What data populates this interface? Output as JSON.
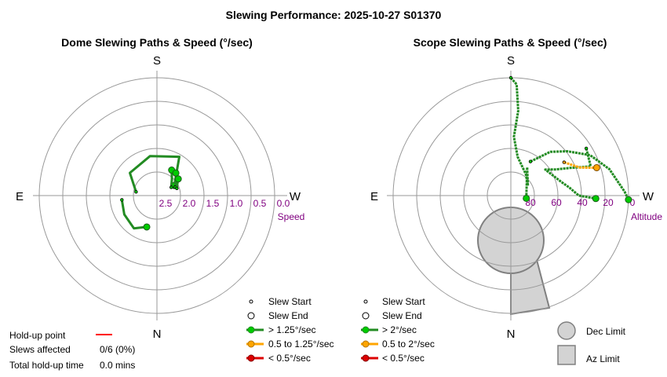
{
  "title": "Slewing Performance: 2025-10-27 S01370",
  "colors": {
    "fast": "#00cc00",
    "fast_line": "#228b22",
    "medium": "#ffa500",
    "slow": "#dd0000",
    "axis_label": "#800080",
    "ring": "#999999",
    "limit_fill": "#d3d3d3",
    "limit_stroke": "#808080",
    "holdup": "#ff0000"
  },
  "chart_data": [
    {
      "type": "polar",
      "id": "dome",
      "title": "Dome Slewing Paths & Speed (°/sec)",
      "directions": {
        "top": "S",
        "bottom": "N",
        "left": "E",
        "right": "W"
      },
      "radial_axis": {
        "label": "Speed",
        "ticks": [
          "2.5",
          "2.0",
          "1.5",
          "1.0",
          "0.5",
          "0.0"
        ]
      },
      "legend": [
        {
          "label": "Slew Start",
          "kind": "start"
        },
        {
          "label": "Slew End",
          "kind": "end"
        },
        {
          "label": "> 1.25°/sec",
          "kind": "fast"
        },
        {
          "label": "0.5 to 1.25°/sec",
          "kind": "medium"
        },
        {
          "label": "< 0.5°/sec",
          "kind": "slow"
        }
      ],
      "paths": [
        {
          "speed_class": "fast",
          "az": [
            83,
            60,
            35,
            18
          ],
          "r": [
            1.5,
            1.4,
            1.3,
            1.6
          ]
        },
        {
          "speed_class": "fast",
          "az": [
            100,
            130,
            170,
            210,
            240
          ],
          "r": [
            2.1,
            1.5,
            1.3,
            1.1,
            2.15
          ]
        },
        {
          "speed_class": "fast",
          "az": [
            240,
            222,
            215,
            210
          ],
          "r": [
            2.3,
            2.05,
            1.9,
            1.75
          ]
        },
        {
          "speed_class": "fast",
          "az": [
            245,
            232,
            225,
            220
          ],
          "r": [
            2.15,
            2.0,
            1.85,
            1.75
          ]
        },
        {
          "speed_class": "fast",
          "az": [
            250,
            240,
            232
          ],
          "r": [
            2.1,
            2.0,
            1.85
          ]
        }
      ]
    },
    {
      "type": "polar",
      "id": "scope",
      "title": "Scope Slewing Paths & Speed (°/sec)",
      "directions": {
        "top": "S",
        "bottom": "N",
        "left": "E",
        "right": "W"
      },
      "radial_axis": {
        "label": "Altitude",
        "ticks": [
          "80",
          "60",
          "40",
          "20",
          "0"
        ]
      },
      "legend": [
        {
          "label": "Slew Start",
          "kind": "start"
        },
        {
          "label": "Slew End",
          "kind": "end"
        },
        {
          "label": "> 2°/sec",
          "kind": "fast"
        },
        {
          "label": "0.5 to 2°/sec",
          "kind": "medium"
        },
        {
          "label": "< 0.5°/sec",
          "kind": "slow"
        }
      ],
      "limit_legend": [
        {
          "label": "Dec Limit",
          "kind": "dec"
        },
        {
          "label": "Az Limit",
          "kind": "az"
        }
      ],
      "paths": [
        {
          "speed_class": "fast",
          "az": [
            180,
            183,
            185,
            183,
            190,
            215,
            240,
            210,
            280
          ],
          "alt": [
            0,
            5,
            25,
            45,
            60,
            70,
            75,
            65,
            78
          ]
        },
        {
          "speed_class": "fast",
          "az": [
            238,
            250,
            245,
            240,
            233,
            255,
            262,
            270,
            272
          ],
          "alt": [
            22,
            25,
            40,
            50,
            57,
            50,
            45,
            38,
            25
          ]
        },
        {
          "speed_class": "fast",
          "az": [
            210,
            222,
            232,
            243,
            255,
            268,
            272
          ],
          "alt": [
            60,
            45,
            35,
            22,
            12,
            3,
            0
          ]
        },
        {
          "speed_class": "medium",
          "az": [
            238,
            248,
            252
          ],
          "alt": [
            42,
            33,
            21
          ]
        }
      ]
    }
  ],
  "holdup": {
    "point_label": "Hold-up point",
    "slews_label": "Slews affected",
    "slews_value": "0/6 (0%)",
    "time_label": "Total hold-up time",
    "time_value": "0.0 mins"
  }
}
